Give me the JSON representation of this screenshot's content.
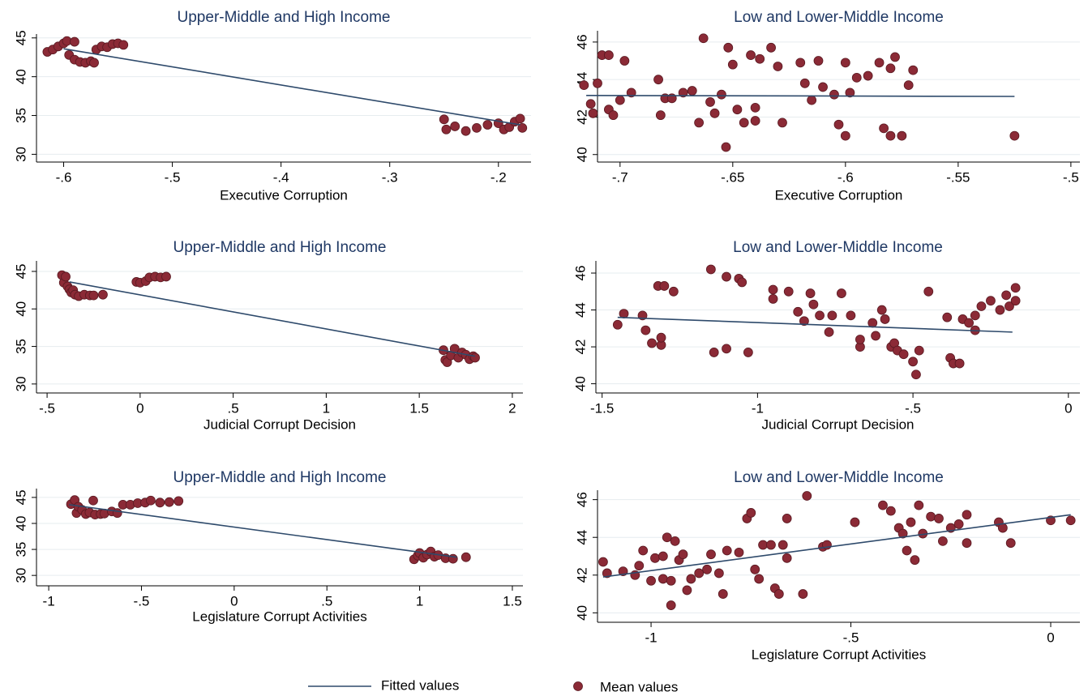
{
  "chart_data": [
    {
      "type": "scatter",
      "title": "Upper-Middle and High Income",
      "xlabel": "Executive Corruption",
      "legend": "bottom",
      "xlim": [
        -0.625,
        -0.17
      ],
      "ylim": [
        29,
        45.5
      ],
      "grid": true,
      "xticks": [
        {
          "value": -0.6,
          "label": "-.6"
        },
        {
          "value": -0.5,
          "label": "-.5"
        },
        {
          "value": -0.4,
          "label": "-.4"
        },
        {
          "value": -0.3,
          "label": "-.3"
        },
        {
          "value": -0.2,
          "label": "-.2"
        }
      ],
      "yticks": [
        30,
        35,
        40,
        45
      ],
      "series": [
        {
          "name": "Mean values",
          "type": "scatter",
          "color": "#8b2a36",
          "x": [
            -0.615,
            -0.61,
            -0.605,
            -0.6,
            -0.597,
            -0.595,
            -0.59,
            -0.59,
            -0.585,
            -0.58,
            -0.575,
            -0.572,
            -0.57,
            -0.565,
            -0.56,
            -0.555,
            -0.55,
            -0.545,
            -0.25,
            -0.248,
            -0.24,
            -0.23,
            -0.22,
            -0.21,
            -0.2,
            -0.195,
            -0.19,
            -0.185,
            -0.18,
            -0.178
          ],
          "values": [
            43.2,
            43.5,
            43.9,
            44.3,
            44.6,
            42.8,
            42.2,
            44.5,
            41.9,
            41.8,
            42.0,
            41.8,
            43.5,
            43.9,
            43.8,
            44.2,
            44.3,
            44.1,
            34.5,
            33.2,
            33.6,
            33.0,
            33.4,
            33.8,
            34.0,
            33.2,
            33.5,
            34.2,
            34.6,
            33.4
          ]
        },
        {
          "name": "Fitted values",
          "type": "line",
          "color": "#2e4a6b",
          "x": [
            -0.6,
            -0.18
          ],
          "values": [
            43.6,
            33.8
          ]
        }
      ]
    },
    {
      "type": "scatter",
      "title": "Low and Lower-Middle Income",
      "xlabel": "Executive Corruption",
      "xlim": [
        -0.71,
        -0.496
      ],
      "ylim": [
        39.6,
        46.6
      ],
      "grid": true,
      "xticks": [
        {
          "value": -0.7,
          "label": "-.7"
        },
        {
          "value": -0.65,
          "label": "-.65"
        },
        {
          "value": -0.6,
          "label": "-.6"
        },
        {
          "value": -0.55,
          "label": "-.55"
        },
        {
          "value": -0.5,
          "label": "-.5"
        }
      ],
      "yticks": [
        40,
        42,
        44,
        46
      ],
      "series": [
        {
          "type": "scatter",
          "color": "#8b2a36",
          "x": [
            -0.716,
            -0.713,
            -0.712,
            -0.71,
            -0.708,
            -0.705,
            -0.705,
            -0.703,
            -0.7,
            -0.698,
            -0.695,
            -0.683,
            -0.682,
            -0.68,
            -0.677,
            -0.672,
            -0.668,
            -0.665,
            -0.663,
            -0.66,
            -0.658,
            -0.655,
            -0.653,
            -0.652,
            -0.65,
            -0.648,
            -0.645,
            -0.642,
            -0.64,
            -0.64,
            -0.638,
            -0.633,
            -0.63,
            -0.628,
            -0.62,
            -0.618,
            -0.615,
            -0.612,
            -0.61,
            -0.605,
            -0.603,
            -0.6,
            -0.598,
            -0.595,
            -0.59,
            -0.585,
            -0.583,
            -0.58,
            -0.578,
            -0.575,
            -0.572,
            -0.57,
            -0.525,
            -0.6,
            -0.58
          ],
          "values": [
            43.7,
            42.7,
            42.2,
            43.8,
            45.3,
            45.3,
            42.4,
            42.1,
            42.9,
            45.0,
            43.3,
            44.0,
            42.1,
            43.0,
            43.0,
            43.3,
            43.4,
            41.7,
            46.2,
            42.8,
            42.2,
            43.2,
            40.4,
            45.7,
            44.8,
            42.4,
            41.7,
            45.3,
            41.8,
            42.5,
            45.1,
            45.7,
            44.7,
            41.7,
            44.9,
            43.8,
            42.9,
            45.0,
            43.6,
            43.2,
            41.6,
            44.9,
            43.3,
            44.1,
            44.2,
            44.9,
            41.4,
            44.6,
            45.2,
            41.0,
            43.7,
            44.5,
            41.0,
            41.0,
            41.0
          ]
        },
        {
          "type": "line",
          "color": "#2e4a6b",
          "x": [
            -0.715,
            -0.525
          ],
          "values": [
            43.15,
            43.1
          ]
        }
      ]
    },
    {
      "type": "scatter",
      "title": "Upper-Middle and High Income",
      "xlabel": "Judicial Corrupt Decision",
      "xlim": [
        -0.557,
        2.057
      ],
      "ylim": [
        28.8,
        46.4
      ],
      "grid": true,
      "xticks": [
        {
          "value": -0.5,
          "label": "-.5"
        },
        0,
        {
          "value": 0.5,
          "label": ".5"
        },
        1,
        {
          "value": 1.5,
          "label": "1.5"
        },
        2
      ],
      "yticks": [
        30,
        35,
        40,
        45
      ],
      "series": [
        {
          "type": "scatter",
          "color": "#8b2a36",
          "x": [
            -0.42,
            -0.41,
            -0.4,
            -0.39,
            -0.38,
            -0.37,
            -0.36,
            -0.35,
            -0.33,
            -0.3,
            -0.27,
            -0.25,
            -0.2,
            -0.02,
            0.0,
            0.03,
            0.05,
            0.08,
            0.11,
            0.14,
            1.63,
            1.64,
            1.65,
            1.67,
            1.69,
            1.71,
            1.73,
            1.75,
            1.77,
            1.79,
            1.8
          ],
          "values": [
            44.5,
            43.5,
            44.3,
            43.0,
            42.6,
            42.2,
            42.5,
            41.9,
            41.7,
            41.9,
            41.8,
            41.8,
            41.9,
            43.6,
            43.5,
            43.7,
            44.2,
            44.3,
            44.2,
            44.3,
            34.5,
            33.2,
            32.9,
            33.8,
            34.7,
            33.5,
            34.2,
            33.9,
            33.3,
            33.7,
            33.5
          ]
        },
        {
          "type": "line",
          "color": "#2e4a6b",
          "x": [
            -0.38,
            1.8
          ],
          "values": [
            43.6,
            33.7
          ]
        }
      ]
    },
    {
      "type": "scatter",
      "title": "Low and Lower-Middle Income",
      "xlabel": "Judicial Corrupt Decision",
      "xlim": [
        -1.52,
        0.037
      ],
      "ylim": [
        39.5,
        46.66
      ],
      "grid": true,
      "xticks": [
        {
          "value": -1.5,
          "label": "-1.5"
        },
        -1,
        {
          "value": -0.5,
          "label": "-.5"
        },
        0
      ],
      "yticks": [
        40,
        42,
        44,
        46
      ],
      "series": [
        {
          "type": "scatter",
          "color": "#8b2a36",
          "x": [
            -1.45,
            -1.43,
            -1.37,
            -1.36,
            -1.34,
            -1.32,
            -1.31,
            -1.31,
            -1.3,
            -1.27,
            -1.15,
            -1.14,
            -1.1,
            -1.1,
            -1.06,
            -1.05,
            -1.03,
            -0.95,
            -0.95,
            -0.9,
            -0.87,
            -0.85,
            -0.83,
            -0.82,
            -0.8,
            -0.77,
            -0.76,
            -0.73,
            -0.7,
            -0.67,
            -0.67,
            -0.63,
            -0.62,
            -0.6,
            -0.59,
            -0.57,
            -0.56,
            -0.55,
            -0.53,
            -0.5,
            -0.49,
            -0.48,
            -0.45,
            -0.39,
            -0.38,
            -0.37,
            -0.35,
            -0.34,
            -0.32,
            -0.3,
            -0.3,
            -0.28,
            -0.25,
            -0.22,
            -0.2,
            -0.19,
            -0.17,
            -0.17
          ],
          "values": [
            43.2,
            43.8,
            43.7,
            42.9,
            42.2,
            45.3,
            42.1,
            42.5,
            45.3,
            45.0,
            46.2,
            41.7,
            45.8,
            41.9,
            45.7,
            45.5,
            41.7,
            45.1,
            44.6,
            45.0,
            43.9,
            43.4,
            44.9,
            44.3,
            43.7,
            42.8,
            43.7,
            44.9,
            43.7,
            42.0,
            42.4,
            43.3,
            42.6,
            44.0,
            43.5,
            42.0,
            42.2,
            41.8,
            41.6,
            41.2,
            40.5,
            41.8,
            45.0,
            43.6,
            41.4,
            41.1,
            41.1,
            43.5,
            43.3,
            43.7,
            42.9,
            44.2,
            44.5,
            44.0,
            44.8,
            44.2,
            45.2,
            44.5
          ]
        },
        {
          "type": "line",
          "color": "#2e4a6b",
          "x": [
            -1.45,
            -0.18
          ],
          "values": [
            43.6,
            42.8
          ]
        }
      ]
    },
    {
      "type": "scatter",
      "title": "Upper-Middle and High Income",
      "xlabel": "Legislature Corrupt Activities",
      "xlim": [
        -1.066,
        1.557
      ],
      "ylim": [
        28,
        46.7
      ],
      "grid": true,
      "xticks": [
        -1,
        {
          "value": -0.5,
          "label": "-.5"
        },
        0,
        {
          "value": 0.5,
          "label": ".5"
        },
        1,
        {
          "value": 1.5,
          "label": "1.5"
        }
      ],
      "yticks": [
        30,
        35,
        40,
        45
      ],
      "series": [
        {
          "type": "scatter",
          "color": "#8b2a36",
          "x": [
            -0.88,
            -0.86,
            -0.85,
            -0.84,
            -0.82,
            -0.8,
            -0.78,
            -0.76,
            -0.75,
            -0.72,
            -0.7,
            -0.66,
            -0.63,
            -0.6,
            -0.56,
            -0.52,
            -0.48,
            -0.45,
            -0.4,
            -0.35,
            -0.3,
            0.97,
            0.99,
            1.0,
            1.02,
            1.04,
            1.06,
            1.08,
            1.1,
            1.14,
            1.18,
            1.25
          ],
          "values": [
            43.7,
            44.5,
            42.0,
            43.2,
            42.6,
            41.8,
            42.1,
            44.4,
            41.7,
            41.8,
            41.9,
            42.3,
            42.0,
            43.6,
            43.6,
            43.9,
            44.0,
            44.4,
            44.0,
            44.1,
            44.3,
            33.1,
            33.8,
            34.3,
            33.4,
            34.0,
            34.6,
            33.6,
            33.9,
            33.3,
            33.2,
            33.5
          ]
        },
        {
          "type": "line",
          "color": "#2e4a6b",
          "x": [
            -0.89,
            1.2
          ],
          "values": [
            43.6,
            33.5
          ]
        }
      ]
    },
    {
      "type": "scatter",
      "title": "Low and Lower-Middle Income",
      "xlabel": "Legislature Corrupt Activities",
      "xlim": [
        -1.134,
        0.073
      ],
      "ylim": [
        39.5,
        46.5
      ],
      "grid": true,
      "xticks": [
        -1,
        {
          "value": -0.5,
          "label": "-.5"
        },
        0
      ],
      "yticks": [
        40,
        42,
        44,
        46
      ],
      "series": [
        {
          "type": "scatter",
          "color": "#8b2a36",
          "x": [
            -1.12,
            -1.11,
            -1.07,
            -1.04,
            -1.03,
            -1.02,
            -1.0,
            -0.99,
            -0.97,
            -0.97,
            -0.96,
            -0.95,
            -0.95,
            -0.94,
            -0.93,
            -0.92,
            -0.91,
            -0.9,
            -0.88,
            -0.86,
            -0.85,
            -0.83,
            -0.82,
            -0.81,
            -0.78,
            -0.76,
            -0.75,
            -0.74,
            -0.73,
            -0.72,
            -0.7,
            -0.69,
            -0.68,
            -0.67,
            -0.66,
            -0.66,
            -0.62,
            -0.61,
            -0.57,
            -0.56,
            -0.49,
            -0.42,
            -0.4,
            -0.38,
            -0.37,
            -0.36,
            -0.35,
            -0.34,
            -0.33,
            -0.32,
            -0.3,
            -0.28,
            -0.27,
            -0.25,
            -0.23,
            -0.21,
            -0.21,
            -0.13,
            -0.12,
            -0.1,
            0.0,
            0.05
          ],
          "values": [
            42.7,
            42.1,
            42.2,
            42.0,
            42.5,
            43.3,
            41.7,
            42.9,
            41.8,
            43.0,
            44.0,
            41.7,
            40.4,
            43.8,
            42.8,
            43.1,
            41.2,
            41.8,
            42.1,
            42.3,
            43.1,
            42.1,
            41.0,
            43.3,
            43.2,
            45.0,
            45.3,
            42.3,
            41.8,
            43.6,
            43.6,
            41.3,
            41.0,
            43.6,
            45.0,
            42.9,
            41.0,
            46.2,
            43.5,
            43.6,
            44.8,
            45.7,
            45.4,
            44.5,
            44.2,
            43.3,
            44.8,
            42.8,
            45.7,
            44.2,
            45.1,
            45.0,
            43.8,
            44.5,
            44.7,
            45.2,
            43.7,
            44.8,
            44.5,
            43.7,
            44.9,
            44.9
          ]
        },
        {
          "type": "line",
          "color": "#2e4a6b",
          "x": [
            -1.12,
            0.05
          ],
          "values": [
            41.9,
            45.2
          ]
        }
      ]
    }
  ]
}
